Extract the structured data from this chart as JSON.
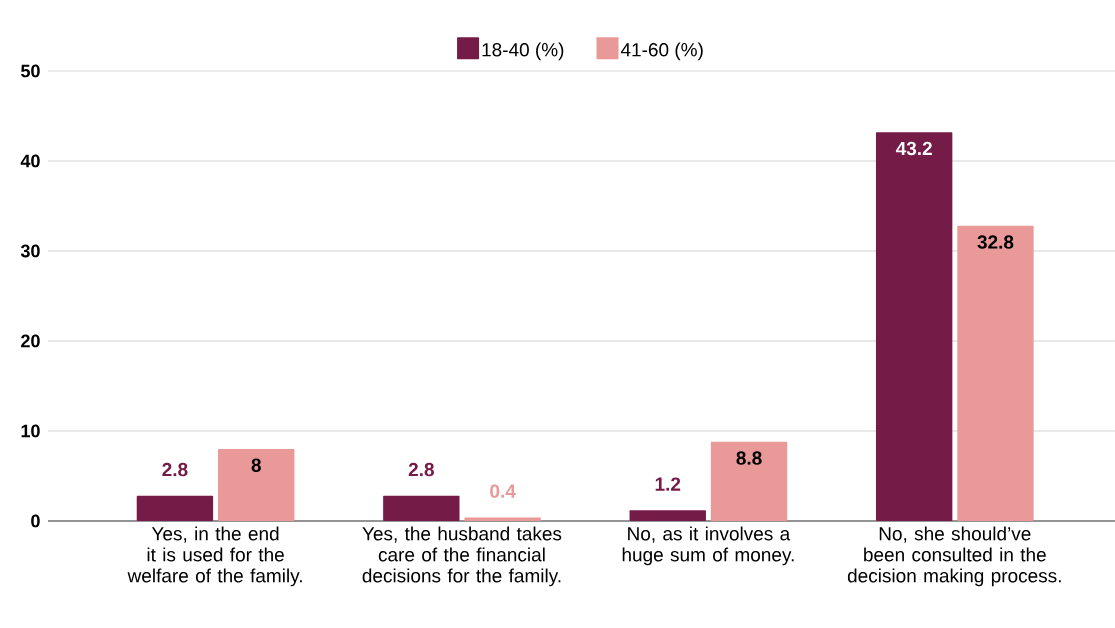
{
  "chart_data": {
    "type": "bar",
    "categories": [
      "Yes, in the end it is used for the welfare of the family.",
      "Yes, the husband takes care of the financial decisions for the family.",
      "No, as it involves a huge sum of money.",
      "No, she should’ve been consulted in the decision making process."
    ],
    "series": [
      {
        "name": "18-40 (%)",
        "color": "#741b47",
        "values": [
          2.8,
          2.8,
          1.2,
          43.2
        ]
      },
      {
        "name": "41-60 (%)",
        "color": "#ea9999",
        "values": [
          8,
          0.4,
          8.8,
          32.8
        ]
      }
    ],
    "ylim": [
      0,
      50
    ],
    "yticks": [
      0,
      10,
      20,
      30,
      40,
      50
    ],
    "grid": "y",
    "legend": "top",
    "data_labels": true
  }
}
